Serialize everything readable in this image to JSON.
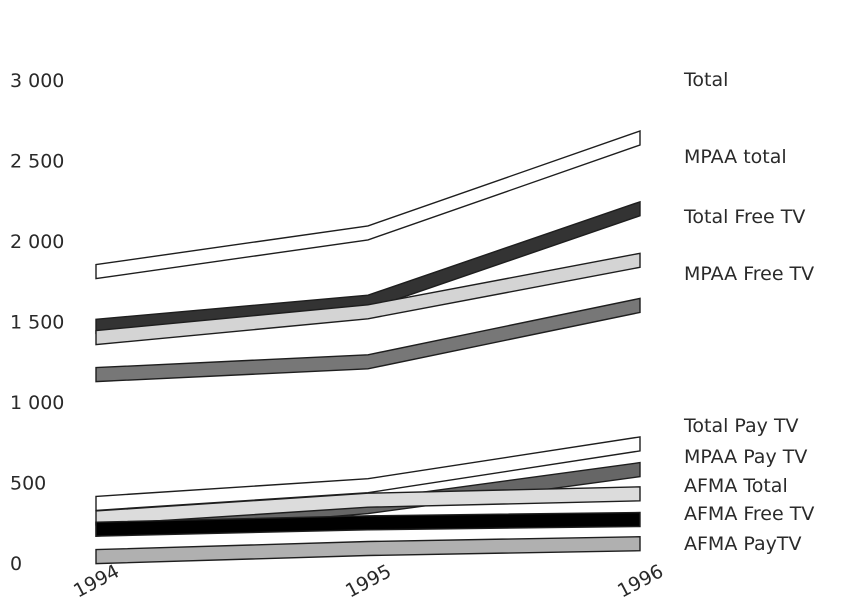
{
  "chart_data": {
    "type": "area",
    "title": "",
    "xlabel": "",
    "ylabel": "",
    "categories": [
      "1994",
      "1995",
      "1996"
    ],
    "ylim": [
      0,
      3000
    ],
    "yticks": [
      "0",
      "500",
      "1 000",
      "1 500",
      "2 000",
      "2 500",
      "3 000"
    ],
    "ytick_values": [
      0,
      500,
      1000,
      1500,
      2000,
      2500,
      3000
    ],
    "legend": "right (labels at series ends)",
    "grid": false,
    "series": [
      {
        "name": "Total",
        "values": [
          1810,
          2050,
          2640
        ],
        "fill": "#ffffff"
      },
      {
        "name": "MPAA total",
        "values": [
          1470,
          1620,
          2200
        ],
        "fill": "#333333"
      },
      {
        "name": "Total Free TV",
        "values": [
          1400,
          1560,
          1880
        ],
        "fill": "#d4d4d4"
      },
      {
        "name": "MPAA Free TV",
        "values": [
          1170,
          1250,
          1600
        ],
        "fill": "#777777"
      },
      {
        "name": "Total Pay TV",
        "values": [
          370,
          480,
          740
        ],
        "fill": "#ffffff"
      },
      {
        "name": "MPAA Pay TV",
        "values": [
          210,
          350,
          580
        ],
        "fill": "#666666"
      },
      {
        "name": "AFMA Total",
        "values": [
          280,
          390,
          430
        ],
        "fill": "#dcdcdc"
      },
      {
        "name": "AFMA Free TV",
        "values": [
          210,
          250,
          270
        ],
        "fill": "#000000"
      },
      {
        "name": "AFMA PayTV",
        "values": [
          40,
          90,
          120
        ],
        "fill": "#b0b0b0"
      }
    ]
  }
}
